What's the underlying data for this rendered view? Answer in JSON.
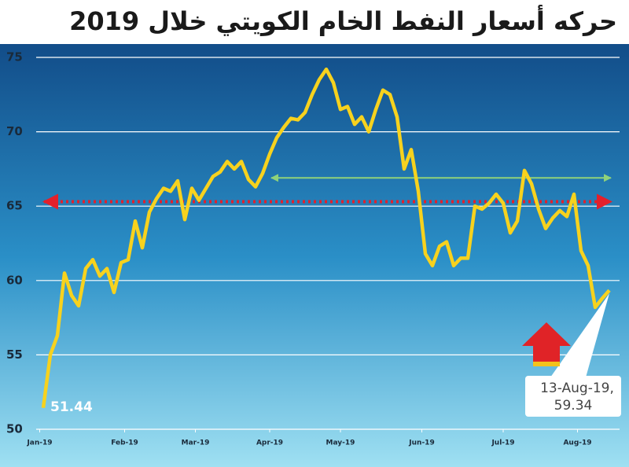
{
  "chart_data": {
    "type": "line",
    "title": "حركه أسعار النفط الخام الكويتي خلال 2019",
    "color": "#f7d21e",
    "values": [
      51.44,
      55.0,
      56.3,
      60.5,
      59.0,
      58.3,
      60.8,
      61.4,
      60.3,
      60.8,
      59.2,
      61.2,
      61.4,
      64.0,
      62.2,
      64.6,
      65.5,
      66.2,
      66.0,
      66.7,
      64.1,
      66.2,
      65.4,
      66.2,
      67.0,
      67.3,
      68.0,
      67.5,
      68.0,
      66.8,
      66.3,
      67.2,
      68.5,
      69.6,
      70.3,
      70.9,
      70.8,
      71.3,
      72.5,
      73.5,
      74.2,
      73.3,
      71.5,
      71.7,
      70.5,
      71.0,
      70.0,
      71.5,
      72.8,
      72.5,
      71.0,
      67.5,
      68.8,
      66.0,
      61.8,
      61.0,
      62.3,
      62.6,
      61.0,
      61.5,
      61.5,
      65.0,
      64.8,
      65.2,
      65.8,
      65.2,
      63.2,
      64.0,
      67.4,
      66.5,
      64.8,
      63.5,
      64.2,
      64.7,
      64.3,
      65.8,
      62.0,
      61.0,
      58.2,
      58.8,
      59.34
    ],
    "xlim": [
      -1,
      80.5
    ],
    "xticks": [
      {
        "value": -0.5,
        "label": "Jan-19"
      },
      {
        "value": 11.5,
        "label": "Feb-19"
      },
      {
        "value": 21.5,
        "label": "Mar-19"
      },
      {
        "value": 32,
        "label": "Apr-19"
      },
      {
        "value": 42,
        "label": "May-19"
      },
      {
        "value": 53.5,
        "label": "Jun-19"
      },
      {
        "value": 65,
        "label": "Jul-19"
      },
      {
        "value": 75.5,
        "label": "Aug-19"
      }
    ],
    "ylim": [
      50,
      75
    ],
    "yticks": [
      50,
      55,
      60,
      65,
      70,
      75
    ],
    "grid": true,
    "last_point_date": "13-Aug-19,",
    "reference_lines": [
      {
        "value": 65.3,
        "color": "#e3202b"
      },
      {
        "value": 66.9,
        "color": "#8fd27a"
      }
    ]
  }
}
